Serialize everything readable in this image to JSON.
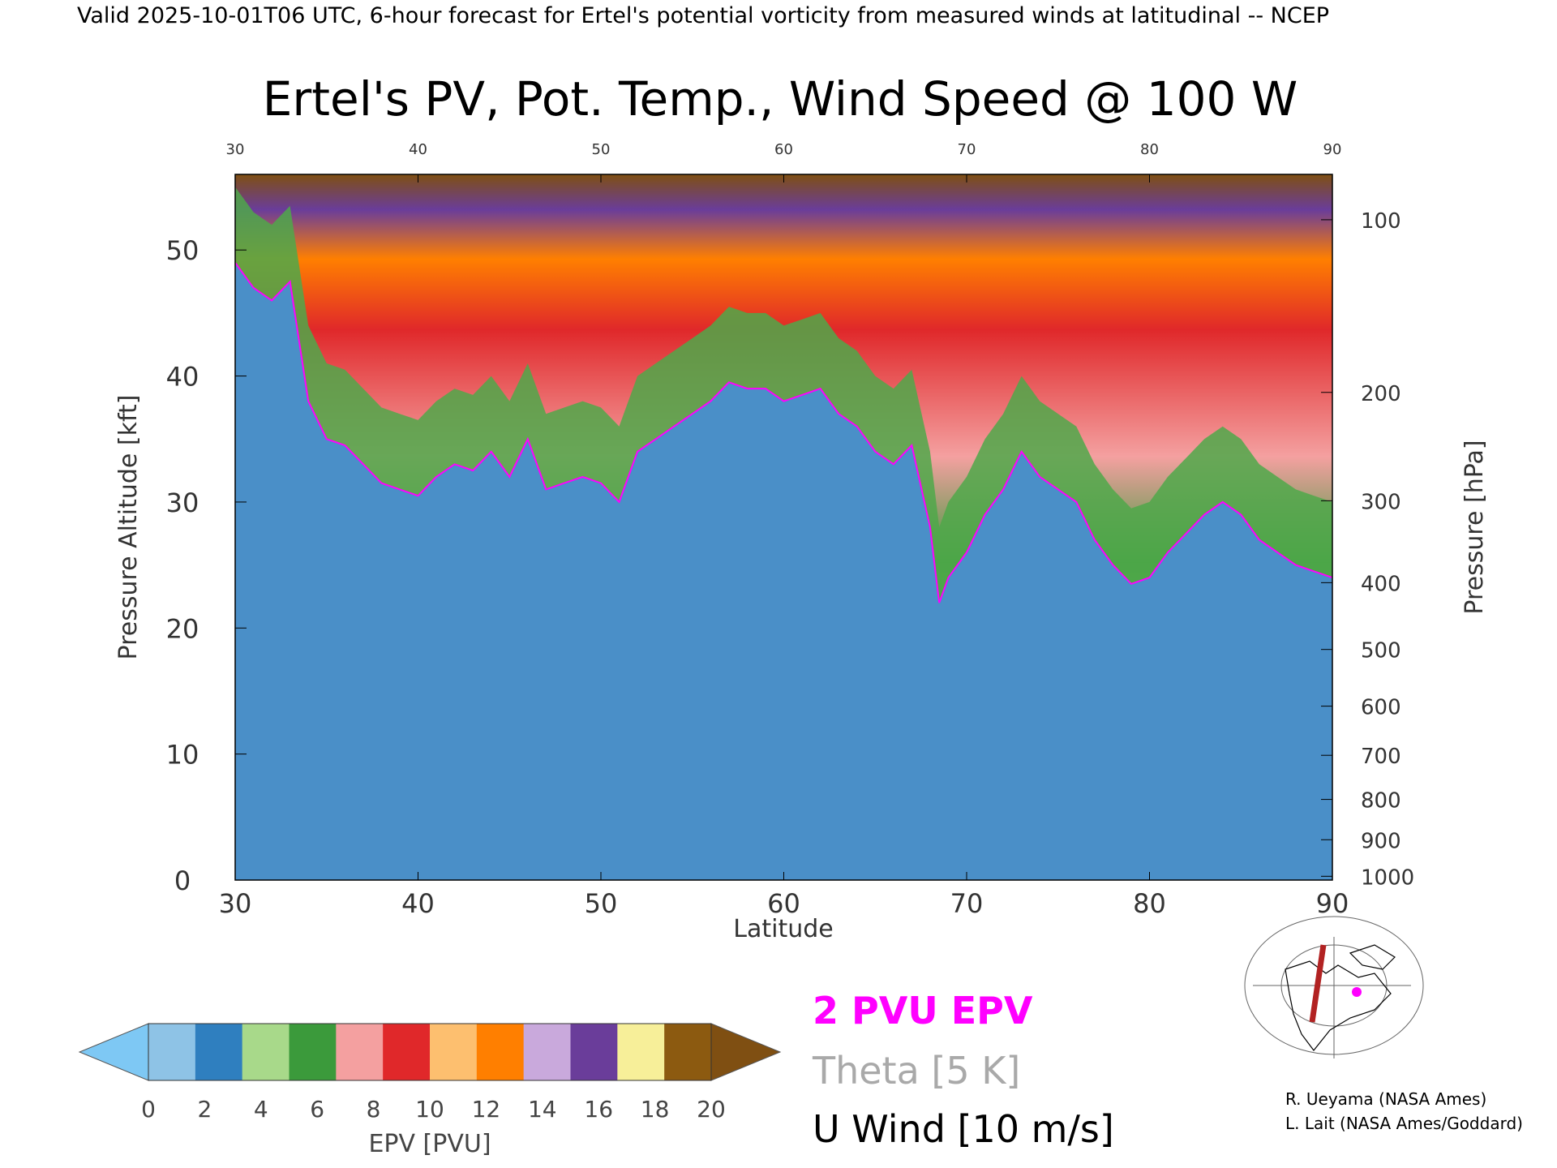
{
  "header": {
    "valid_line": "Valid 2025-10-01T06 UTC, 6-hour forecast for Ertel's potential vorticity from measured winds at latitudinal -- NCEP"
  },
  "chart_data": {
    "type": "heatmap",
    "title": "Ertel's PV, Pot. Temp., Wind Speed @ 100 W",
    "xlabel": "Latitude",
    "ylabel": "Pressure Altitude [kft]",
    "y2label": "Pressure [hPa]",
    "xlim": [
      30,
      90
    ],
    "ylim": [
      0,
      56
    ],
    "x_ticks": [
      30,
      40,
      50,
      60,
      70,
      80,
      90
    ],
    "x_tick_labels": [
      "30",
      "40",
      "50",
      "60",
      "70",
      "80",
      "90"
    ],
    "y_ticks": [
      0,
      10,
      20,
      30,
      40,
      50
    ],
    "y_tick_labels": [
      "0",
      "10",
      "20",
      "30",
      "40",
      "50"
    ],
    "pressure_ticks": [
      {
        "hpa": "100",
        "kft": 52.4
      },
      {
        "hpa": "200",
        "kft": 38.7
      },
      {
        "hpa": "300",
        "kft": 30.1
      },
      {
        "hpa": "400",
        "kft": 23.6
      },
      {
        "hpa": "500",
        "kft": 18.3
      },
      {
        "hpa": "600",
        "kft": 13.8
      },
      {
        "hpa": "700",
        "kft": 9.9
      },
      {
        "hpa": "800",
        "kft": 6.4
      },
      {
        "hpa": "900",
        "kft": 3.2
      },
      {
        "hpa": "1000",
        "kft": 0.3
      }
    ],
    "tropopause_2pvu": [
      [
        30,
        49
      ],
      [
        31,
        47
      ],
      [
        32,
        46
      ],
      [
        33,
        47.5
      ],
      [
        34,
        38
      ],
      [
        35,
        35
      ],
      [
        36,
        34.5
      ],
      [
        37,
        33
      ],
      [
        38,
        31.5
      ],
      [
        39,
        31
      ],
      [
        40,
        30.5
      ],
      [
        41,
        32
      ],
      [
        42,
        33
      ],
      [
        43,
        32.5
      ],
      [
        44,
        34
      ],
      [
        45,
        32
      ],
      [
        46,
        35
      ],
      [
        47,
        31
      ],
      [
        48,
        31.5
      ],
      [
        49,
        32
      ],
      [
        50,
        31.5
      ],
      [
        51,
        30
      ],
      [
        52,
        34
      ],
      [
        53,
        35
      ],
      [
        54,
        36
      ],
      [
        55,
        37
      ],
      [
        56,
        38
      ],
      [
        57,
        39.5
      ],
      [
        58,
        39
      ],
      [
        59,
        39
      ],
      [
        60,
        38
      ],
      [
        61,
        38.5
      ],
      [
        62,
        39
      ],
      [
        63,
        37
      ],
      [
        64,
        36
      ],
      [
        65,
        34
      ],
      [
        66,
        33
      ],
      [
        67,
        34.5
      ],
      [
        68,
        28
      ],
      [
        68.5,
        22
      ],
      [
        69,
        24
      ],
      [
        70,
        26
      ],
      [
        71,
        29
      ],
      [
        72,
        31
      ],
      [
        73,
        34
      ],
      [
        74,
        32
      ],
      [
        75,
        31
      ],
      [
        76,
        30
      ],
      [
        77,
        27
      ],
      [
        78,
        25
      ],
      [
        79,
        23.5
      ],
      [
        80,
        24
      ],
      [
        81,
        26
      ],
      [
        82,
        27.5
      ],
      [
        83,
        29
      ],
      [
        84,
        30
      ],
      [
        85,
        29
      ],
      [
        86,
        27
      ],
      [
        87,
        26
      ],
      [
        88,
        25
      ],
      [
        89,
        24.5
      ],
      [
        90,
        24
      ]
    ],
    "epv_colorbar": {
      "label": "EPV [PVU]",
      "ticks": [
        "0",
        "2",
        "4",
        "6",
        "8",
        "10",
        "12",
        "14",
        "16",
        "18",
        "20"
      ],
      "colors": [
        "#8ec3e6",
        "#2f7fbf",
        "#a8d98a",
        "#3b9a3b",
        "#f4a0a0",
        "#e0282a",
        "#fdbf6f",
        "#ff7f00",
        "#c9a9dc",
        "#6a3d9a",
        "#f7ef99",
        "#8c5a10"
      ],
      "under_color": "#7ec8f4",
      "over_color": "#7f4f12"
    },
    "legend": [
      {
        "label": "2 PVU EPV",
        "color": "#ff00ff"
      },
      {
        "label": "Theta [5 K]",
        "color": "#a9a9a9"
      },
      {
        "label": "U Wind [10 m/s]",
        "color": "#000000"
      }
    ],
    "grid": false,
    "inset_map": {
      "section_longitude": "100 W"
    }
  },
  "credits": [
    "R. Ueyama (NASA Ames)",
    "L. Lait (NASA Ames/Goddard)"
  ]
}
